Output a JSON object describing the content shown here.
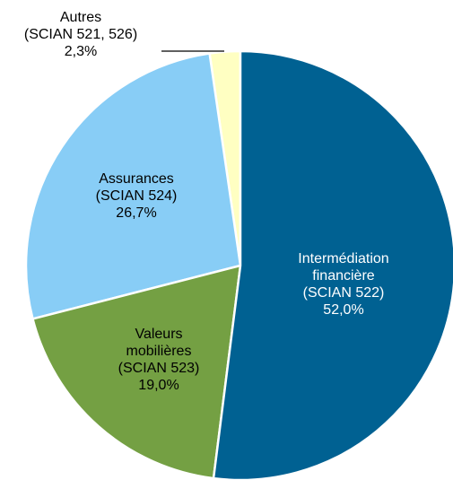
{
  "chart_data": {
    "type": "pie",
    "categories": [
      "Intermédiation\nfinancière\n(SCIAN 522)",
      "Valeurs\nmobilières\n(SCIAN 523)",
      "Assurances\n(SCIAN 524)",
      "Autres\n(SCIAN 521, 526)"
    ],
    "values": [
      52.0,
      19.0,
      26.7,
      2.3
    ],
    "value_labels": [
      "52,0%",
      "19,0%",
      "26,7%",
      "2,3%"
    ],
    "colors": [
      "#006192",
      "#74a043",
      "#88cdf6",
      "#ffffc2"
    ]
  }
}
